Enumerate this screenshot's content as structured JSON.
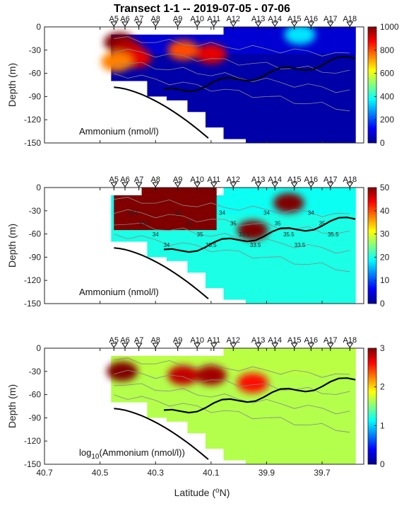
{
  "title": "Transect 1-1 -- 2019-07-05 - 07-06",
  "xlabel_prefix": "Latitude (",
  "xlabel_sup": "o",
  "xlabel_suffix": "N)",
  "ylabel": "Depth (m)",
  "chart_data": [
    {
      "type": "heatmap",
      "panel_label": "Ammonium (nmol/l)",
      "xlim": [
        40.7,
        39.55
      ],
      "ylim": [
        -150,
        0
      ],
      "xticks": [
        40.7,
        40.5,
        40.3,
        40.1,
        39.9,
        39.7
      ],
      "xtick_labels": [
        "40.7",
        "40.5",
        "40.3",
        "40.1",
        "39.9",
        "39.7"
      ],
      "yticks": [
        0,
        -30,
        -60,
        -90,
        -120,
        -150
      ],
      "ytick_labels": [
        "0",
        "-30",
        "-60",
        "-90",
        "-120",
        "-150"
      ],
      "clim": [
        0,
        1000
      ],
      "colorbar_ticks": [
        0,
        200,
        400,
        600,
        800,
        1000
      ],
      "colorbar_tick_labels": [
        "0",
        "200",
        "400",
        "600",
        "800",
        "1000"
      ],
      "colormap": "jet",
      "stations": [
        "A5",
        "A6",
        "A7",
        "A8",
        "A9",
        "A10",
        "A11",
        "A12",
        "A13",
        "A14",
        "A15",
        "A16",
        "A17",
        "A18"
      ],
      "station_lat": [
        40.45,
        40.41,
        40.36,
        40.3,
        40.22,
        40.15,
        40.09,
        40.02,
        39.93,
        39.87,
        39.8,
        39.74,
        39.67,
        39.6
      ],
      "hotspots": [
        {
          "lat": 40.43,
          "depth": -20,
          "value": 1000
        },
        {
          "lat": 40.4,
          "depth": -30,
          "value": 950
        },
        {
          "lat": 40.37,
          "depth": -40,
          "value": 900
        },
        {
          "lat": 40.44,
          "depth": -45,
          "value": 750
        },
        {
          "lat": 40.2,
          "depth": -30,
          "value": 800
        },
        {
          "lat": 40.1,
          "depth": -35,
          "value": 900
        },
        {
          "lat": 39.78,
          "depth": -10,
          "value": 350
        }
      ],
      "contour_labels": []
    },
    {
      "type": "heatmap",
      "panel_label": "Ammonium (nmol/l)",
      "xlim": [
        40.7,
        39.55
      ],
      "ylim": [
        -150,
        0
      ],
      "xticks": [
        40.7,
        40.5,
        40.3,
        40.1,
        39.9,
        39.7
      ],
      "xtick_labels": [
        "40.7",
        "40.5",
        "40.3",
        "40.1",
        "39.9",
        "39.7"
      ],
      "yticks": [
        0,
        -30,
        -60,
        -90,
        -120,
        -150
      ],
      "ytick_labels": [
        "0",
        "-30",
        "-60",
        "-90",
        "-120",
        "-150"
      ],
      "clim": [
        0,
        50
      ],
      "colorbar_ticks": [
        0,
        10,
        20,
        30,
        40,
        50
      ],
      "colorbar_tick_labels": [
        "0",
        "10",
        "20",
        "30",
        "40",
        "50"
      ],
      "colormap": "jet",
      "stations": [
        "A5",
        "A6",
        "A7",
        "A8",
        "A9",
        "A10",
        "A11",
        "A12",
        "A13",
        "A14",
        "A15",
        "A16",
        "A17",
        "A18"
      ],
      "station_lat": [
        40.45,
        40.41,
        40.36,
        40.3,
        40.22,
        40.15,
        40.09,
        40.02,
        39.93,
        39.87,
        39.8,
        39.74,
        39.67,
        39.6
      ],
      "hotspots": [
        {
          "lat": 39.95,
          "depth": -55,
          "value": 50
        },
        {
          "lat": 39.82,
          "depth": -20,
          "value": 50
        }
      ],
      "contour_labels": [
        "33.5",
        "33.5",
        "34",
        "34",
        "35",
        "34",
        "35",
        "35.5",
        "34",
        "35",
        "33.5",
        "33.5",
        "34",
        "35",
        "35.5",
        "33.5",
        "34",
        "35",
        "35.5"
      ]
    },
    {
      "type": "heatmap",
      "panel_label_prefix": "log",
      "panel_label_sub": "10",
      "panel_label_suffix": "(Ammonium (nmol/l))",
      "xlim": [
        40.7,
        39.55
      ],
      "ylim": [
        -150,
        0
      ],
      "xticks": [
        40.7,
        40.5,
        40.3,
        40.1,
        39.9,
        39.7
      ],
      "xtick_labels": [
        "40.7",
        "40.5",
        "40.3",
        "40.1",
        "39.9",
        "39.7"
      ],
      "yticks": [
        0,
        -30,
        -60,
        -90,
        -120,
        -150
      ],
      "ytick_labels": [
        "0",
        "-30",
        "-60",
        "-90",
        "-120",
        "-150"
      ],
      "clim": [
        0,
        3
      ],
      "colorbar_ticks": [
        0,
        1,
        2,
        3
      ],
      "colorbar_tick_labels": [
        "0",
        "1",
        "2",
        "3"
      ],
      "colormap": "jet",
      "stations": [
        "A5",
        "A6",
        "A7",
        "A8",
        "A9",
        "A10",
        "A11",
        "A12",
        "A13",
        "A14",
        "A15",
        "A16",
        "A17",
        "A18"
      ],
      "station_lat": [
        40.45,
        40.41,
        40.36,
        40.3,
        40.22,
        40.15,
        40.09,
        40.02,
        39.93,
        39.87,
        39.8,
        39.74,
        39.67,
        39.6
      ],
      "hotspots": [
        {
          "lat": 40.42,
          "depth": -30,
          "value": 3
        },
        {
          "lat": 40.2,
          "depth": -35,
          "value": 2.8
        },
        {
          "lat": 40.1,
          "depth": -35,
          "value": 2.9
        },
        {
          "lat": 39.95,
          "depth": -45,
          "value": 2.6
        }
      ],
      "contour_labels": []
    }
  ]
}
